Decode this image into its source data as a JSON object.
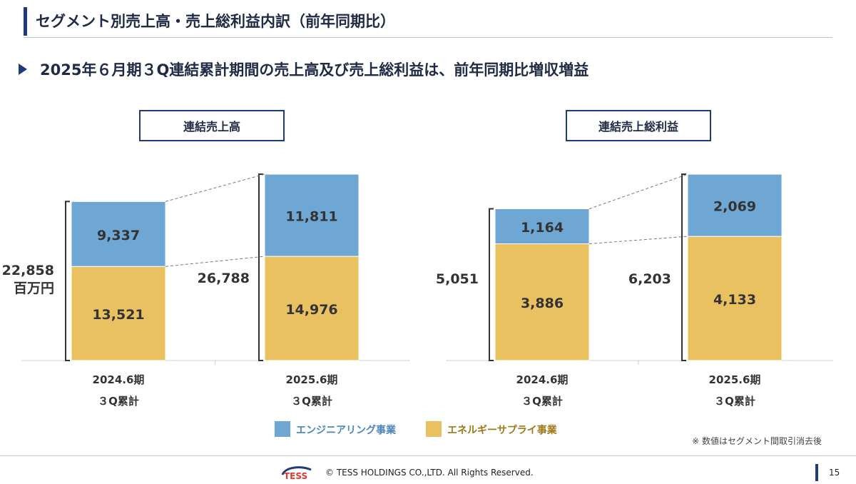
{
  "header": {
    "title": "セグメント別売上高・売上総利益内訳（前年同期比）"
  },
  "headline": {
    "text": "2025年６月期３Q連結累計期間の売上高及び売上総利益は、前年同期比増収増益"
  },
  "colors": {
    "engineering": "#6ea6d4",
    "energy_supply": "#eac161",
    "accent": "#1f3b7a"
  },
  "chart_data": [
    {
      "type": "bar",
      "stacked": true,
      "title": "連結売上高",
      "categories": [
        [
          "2024.6期",
          "３Q累計"
        ],
        [
          "2025.6期",
          "３Q累計"
        ]
      ],
      "series": [
        {
          "name": "エネルギーサプライ事業",
          "values": [
            13521,
            14976
          ]
        },
        {
          "name": "エンジニアリング事業",
          "values": [
            9337,
            11811
          ]
        }
      ],
      "totals": [
        22858,
        26788
      ],
      "unit": "百万円"
    },
    {
      "type": "bar",
      "stacked": true,
      "title": "連結売上総利益",
      "categories": [
        [
          "2024.6期",
          "３Q累計"
        ],
        [
          "2025.6期",
          "３Q累計"
        ]
      ],
      "series": [
        {
          "name": "エネルギーサプライ事業",
          "values": [
            3886,
            4133
          ]
        },
        {
          "name": "エンジニアリング事業",
          "values": [
            1164,
            2069
          ]
        }
      ],
      "totals": [
        5051,
        6203
      ]
    }
  ],
  "legend": [
    {
      "label": "エンジニアリング事業",
      "color": "#6ea6d4"
    },
    {
      "label": "エネルギーサプライ事業",
      "color": "#eac161"
    }
  ],
  "note": "※ 数値はセグメント間取引消去後",
  "footer": {
    "logo_text": "TESS",
    "copyright": "© TESS HOLDINGS CO.,LTD. All Rights Reserved.",
    "page_number": "15"
  }
}
